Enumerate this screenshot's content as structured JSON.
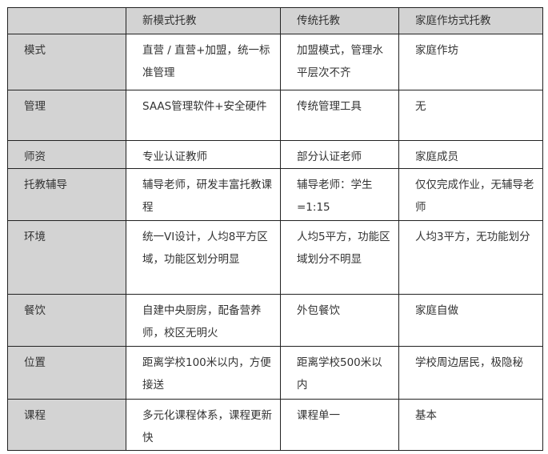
{
  "headers": [
    "",
    "新模式托教",
    "传统托教",
    "家庭作坊式托教"
  ],
  "rows": [
    [
      "模式",
      "直营 / 直营+加盟，统一标准管理",
      "加盟模式，管理水平层次不齐",
      "家庭作坊"
    ],
    [
      "管理",
      "SAAS管理软件+安全硬件",
      "传统管理工具",
      "无"
    ],
    [
      "师资",
      "专业认证教师",
      "部分认证老师",
      "家庭成员"
    ],
    [
      "托教辅导",
      "辅导老师，研发丰富托教课程",
      "辅导老师：学生=1:15",
      "仅仅完成作业，无辅导老师"
    ],
    [
      "环境",
      "统一VI设计，人均8平方区域，功能区划分明显",
      "人均5平方，功能区域划分不明显",
      "人均3平方，无功能划分"
    ],
    [
      "餐饮",
      "自建中央厨房，配备营养师，校区无明火",
      "外包餐饮",
      "家庭自做"
    ],
    [
      "位置",
      "距离学校100米以内，方便接送",
      "距离学校500米以内",
      "学校周边居民，极隐秘"
    ],
    [
      "课程",
      "多元化课程体系，课程更新快",
      "课程单一",
      "基本"
    ]
  ],
  "colors": {
    "header_bg": "#d3d3d3",
    "border": "#222222",
    "text": "#333333"
  }
}
